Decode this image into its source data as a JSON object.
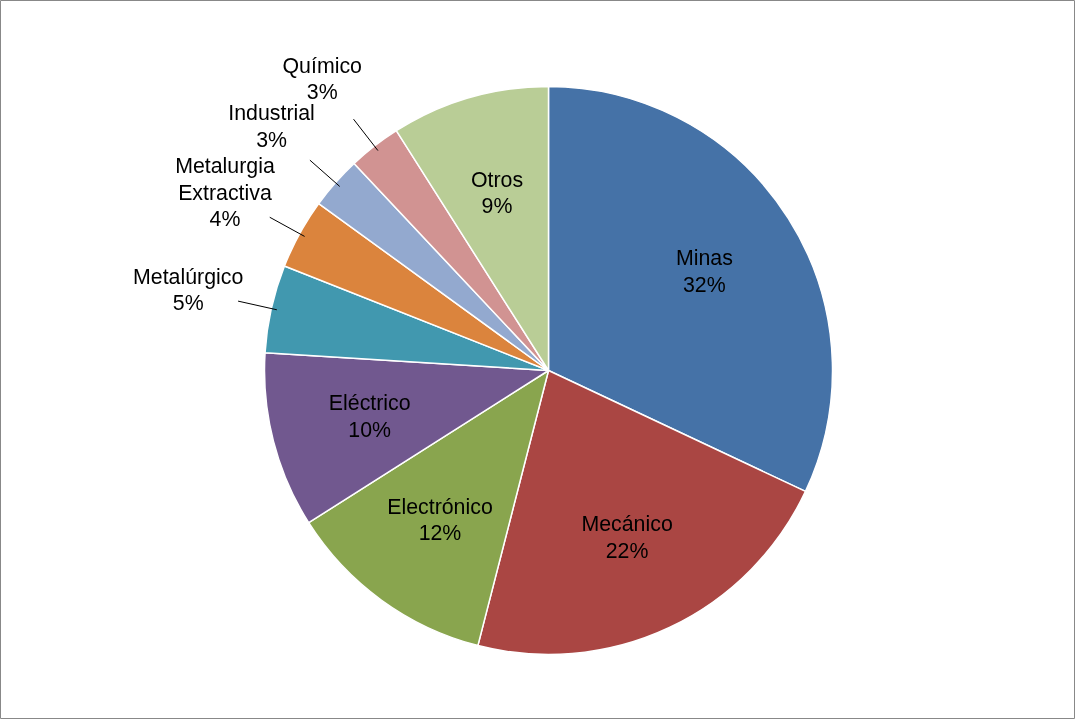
{
  "chart_data": {
    "type": "pie",
    "categories": [
      "Minas",
      "Mecánico",
      "Electrónico",
      "Eléctrico",
      "Metalúrgico",
      "Metalurgia Extractiva",
      "Industrial",
      "Químico",
      "Otros"
    ],
    "values": [
      32,
      22,
      12,
      10,
      5,
      4,
      3,
      3,
      9
    ],
    "colors": [
      "#4572a7",
      "#aa4643",
      "#89a54e",
      "#71588f",
      "#4198af",
      "#db843d",
      "#93a9cf",
      "#d19392",
      "#b9cd96"
    ],
    "value_labels": [
      "32%",
      "22%",
      "12%",
      "10%",
      "5%",
      "4%",
      "3%",
      "3%",
      "9%"
    ],
    "legend": false
  }
}
